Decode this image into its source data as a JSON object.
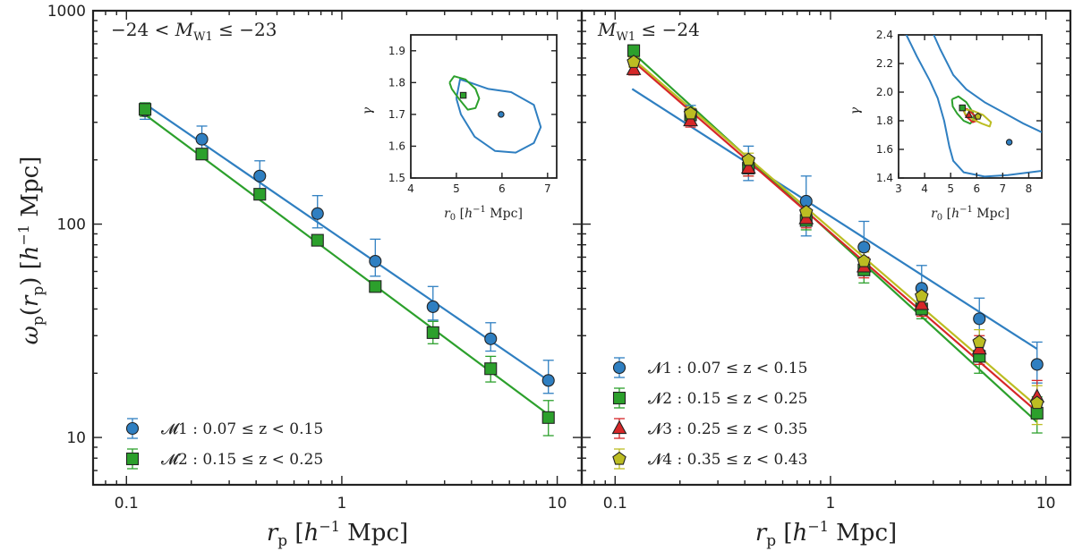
{
  "chart_data": [
    {
      "type": "scatter",
      "panel": "left",
      "title": "−24 < M_W1 ≤ −23",
      "xlabel": "r_p [h⁻¹ Mpc]",
      "ylabel": "ω_p(r_p) [h⁻¹ Mpc]",
      "xscale": "log",
      "yscale": "log",
      "xlim": [
        0.07,
        13
      ],
      "ylim": [
        6,
        1000
      ],
      "xticks": [
        0.1,
        1,
        10
      ],
      "xtick_labels": [
        "0.1",
        "1",
        "10"
      ],
      "yticks": [
        10,
        100,
        1000
      ],
      "ytick_labels": [
        "10",
        "100",
        "1000"
      ],
      "legend_position": "bottom-left",
      "series": [
        {
          "name": "M1",
          "label": "𝓜1 : 0.07 ≤ z < 0.15",
          "color": "#2f7fc1",
          "marker": "circle",
          "x": [
            0.122,
            0.224,
            0.416,
            0.771,
            1.43,
            2.65,
            4.91,
            9.1
          ],
          "y": [
            340,
            250,
            168,
            112,
            67,
            41,
            29,
            18.5
          ],
          "yerr_up": [
            30,
            38,
            30,
            24,
            18,
            10,
            5.5,
            4.5
          ],
          "yerr_down": [
            30,
            32,
            22,
            16,
            10,
            5.5,
            3.6,
            2.4
          ],
          "fit": {
            "x": [
              0.12,
              9.1
            ],
            "y": [
              370,
              18.5
            ]
          }
        },
        {
          "name": "M2",
          "label": "𝓜2 : 0.15 ≤ z < 0.25",
          "color": "#2ca02c",
          "marker": "square",
          "x": [
            0.122,
            0.224,
            0.416,
            0.771,
            1.43,
            2.65,
            4.91,
            9.1
          ],
          "y": [
            345,
            213,
            138,
            84,
            51,
            31,
            21,
            12.4
          ],
          "yerr_up": [
            25,
            8,
            6,
            4,
            3,
            4,
            3,
            2.5
          ],
          "yerr_down": [
            25,
            8,
            6,
            4,
            3,
            3.5,
            2.8,
            2.2
          ],
          "fit": {
            "x": [
              0.12,
              9.1
            ],
            "y": [
              330,
              12.8
            ]
          }
        }
      ],
      "inset": {
        "xlabel": "r₀ [h⁻¹ Mpc]",
        "ylabel": "γ",
        "xlim": [
          4,
          7.2
        ],
        "ylim": [
          1.5,
          1.95
        ],
        "xticks": [
          4,
          5,
          6,
          7
        ],
        "xtick_labels": [
          "4",
          "5",
          "6",
          "7"
        ],
        "yticks": [
          1.5,
          1.6,
          1.7,
          1.8,
          1.9
        ],
        "ytick_labels": [
          "1.5",
          "1.6",
          "1.7",
          "1.8",
          "1.9"
        ],
        "points": [
          {
            "series": "M1",
            "x": 5.98,
            "y": 1.7,
            "color": "#2f7fc1",
            "marker": "circle"
          },
          {
            "series": "M2",
            "x": 5.15,
            "y": 1.76,
            "color": "#2ca02c",
            "marker": "square"
          }
        ],
        "contours": [
          {
            "series": "M1",
            "color": "#2f7fc1",
            "x": [
              5.0,
              5.08,
              5.3,
              5.7,
              6.2,
              6.7,
              6.85,
              6.7,
              6.3,
              5.85,
              5.4,
              5.1,
              5.0
            ],
            "y": [
              1.75,
              1.81,
              1.8,
              1.78,
              1.77,
              1.73,
              1.66,
              1.61,
              1.58,
              1.585,
              1.63,
              1.7,
              1.75
            ]
          },
          {
            "series": "M2",
            "color": "#2ca02c",
            "x": [
              4.85,
              4.95,
              5.2,
              5.42,
              5.5,
              5.42,
              5.25,
              5.05,
              4.9,
              4.85
            ],
            "y": [
              1.8,
              1.82,
              1.81,
              1.78,
              1.75,
              1.72,
              1.715,
              1.75,
              1.78,
              1.8
            ]
          }
        ]
      }
    },
    {
      "type": "scatter",
      "panel": "right",
      "title": "M_W1 ≤ −24",
      "xlabel": "r_p [h⁻¹ Mpc]",
      "xscale": "log",
      "yscale": "log",
      "xlim": [
        0.07,
        13
      ],
      "ylim": [
        6,
        1000
      ],
      "xticks": [
        0.1,
        1,
        10
      ],
      "xtick_labels": [
        "0.1",
        "1",
        "10"
      ],
      "legend_position": "bottom-left",
      "series": [
        {
          "name": "N1",
          "label": "𝓝1 : 0.07 ≤ z < 0.15",
          "color": "#2f7fc1",
          "marker": "circle",
          "x": [
            0.224,
            0.416,
            0.771,
            1.43,
            2.65,
            4.91,
            9.1
          ],
          "y": [
            320,
            190,
            128,
            78,
            50,
            36,
            22
          ],
          "yerr_up": [
            40,
            42,
            40,
            25,
            14,
            9,
            6
          ],
          "yerr_down": [
            30,
            30,
            40,
            17,
            10,
            7,
            4
          ],
          "fit": {
            "x": [
              0.12,
              9.1
            ],
            "y": [
              430,
              26
            ]
          }
        },
        {
          "name": "N2",
          "label": "𝓝2 : 0.15 ≤ z < 0.25",
          "color": "#2ca02c",
          "marker": "square",
          "x": [
            0.122,
            0.224,
            0.416,
            0.771,
            1.43,
            2.65,
            4.91,
            9.1
          ],
          "y": [
            650,
            325,
            183,
            104,
            61,
            40,
            24,
            13
          ],
          "yerr_up": [
            40,
            20,
            15,
            10,
            6,
            4,
            4,
            2.5
          ],
          "yerr_down": [
            40,
            20,
            15,
            10,
            8,
            4,
            4,
            2.5
          ],
          "fit": {
            "x": [
              0.12,
              9.1
            ],
            "y": [
              640,
              11.8
            ]
          }
        },
        {
          "name": "N3",
          "label": "𝓝3 : 0.25 ≤ z < 0.35",
          "color": "#d62728",
          "marker": "triangle",
          "x": [
            0.122,
            0.224,
            0.416,
            0.771,
            1.43,
            2.65,
            4.91,
            9.1
          ],
          "y": [
            530,
            305,
            183,
            106,
            63,
            42,
            26,
            15.5
          ],
          "yerr_up": [
            30,
            20,
            15,
            10,
            7,
            5,
            4,
            3
          ],
          "yerr_down": [
            30,
            20,
            15,
            10,
            7,
            5,
            4,
            3
          ],
          "fit": {
            "x": [
              0.12,
              9.1
            ],
            "y": [
              585,
              13.2
            ]
          }
        },
        {
          "name": "N4",
          "label": "𝓝4 : 0.35 ≤ z < 0.43",
          "color": "#bcbd22",
          "marker": "pentagon",
          "x": [
            0.122,
            0.224,
            0.416,
            0.771,
            1.43,
            2.65,
            4.91,
            9.1
          ],
          "y": [
            575,
            330,
            200,
            114,
            67,
            46,
            28,
            14.5
          ],
          "yerr_up": [
            30,
            20,
            15,
            10,
            7,
            5,
            4,
            3
          ],
          "yerr_down": [
            30,
            20,
            15,
            10,
            7,
            5,
            4,
            3
          ],
          "fit": {
            "x": [
              0.12,
              9.1
            ],
            "y": [
              600,
              14
            ]
          }
        }
      ],
      "inset": {
        "xlabel": "r₀ [h⁻¹ Mpc]",
        "ylabel": "γ",
        "xlim": [
          3,
          8.5
        ],
        "ylim": [
          1.4,
          2.4
        ],
        "xticks": [
          3,
          4,
          5,
          6,
          7,
          8
        ],
        "xtick_labels": [
          "3",
          "4",
          "5",
          "6",
          "7",
          "8"
        ],
        "yticks": [
          1.4,
          1.6,
          1.8,
          2.0,
          2.2,
          2.4
        ],
        "ytick_labels": [
          "1.4",
          "1.6",
          "1.8",
          "2.0",
          "2.2",
          "2.4"
        ],
        "points": [
          {
            "series": "N1",
            "x": 7.25,
            "y": 1.65,
            "color": "#2f7fc1",
            "marker": "circle"
          },
          {
            "series": "N2",
            "x": 5.45,
            "y": 1.89,
            "color": "#2ca02c",
            "marker": "square"
          },
          {
            "series": "N3",
            "x": 5.7,
            "y": 1.84,
            "color": "#d62728",
            "marker": "triangle"
          },
          {
            "series": "N4",
            "x": 6.05,
            "y": 1.83,
            "color": "#bcbd22",
            "marker": "pentagon"
          }
        ],
        "contours": [
          {
            "series": "N1-left",
            "color": "#2f7fc1",
            "x": [
              3.3,
              3.7,
              4.2,
              4.5,
              4.75,
              4.95,
              5.1,
              5.5,
              6.3,
              7.2,
              8.5
            ],
            "y": [
              2.4,
              2.25,
              2.08,
              1.96,
              1.8,
              1.62,
              1.52,
              1.44,
              1.41,
              1.42,
              1.45
            ]
          },
          {
            "series": "N1-right",
            "color": "#2f7fc1",
            "x": [
              4.35,
              4.6,
              5.1,
              5.6,
              6.3,
              7.0,
              7.8,
              8.5
            ],
            "y": [
              2.4,
              2.3,
              2.12,
              2.02,
              1.93,
              1.86,
              1.78,
              1.72
            ]
          },
          {
            "series": "N2",
            "color": "#2ca02c",
            "x": [
              5.05,
              5.3,
              5.6,
              5.85,
              5.9,
              5.75,
              5.5,
              5.25,
              5.08,
              5.05
            ],
            "y": [
              1.95,
              1.97,
              1.93,
              1.86,
              1.81,
              1.78,
              1.8,
              1.85,
              1.9,
              1.95
            ]
          },
          {
            "series": "N3",
            "color": "#d62728",
            "x": [
              5.45,
              5.65,
              5.9,
              6.0,
              5.85,
              5.6,
              5.45
            ],
            "y": [
              1.89,
              1.88,
              1.84,
              1.8,
              1.79,
              1.83,
              1.89
            ]
          },
          {
            "series": "N4",
            "color": "#bcbd22",
            "x": [
              5.5,
              5.85,
              6.25,
              6.55,
              6.5,
              6.2,
              5.85,
              5.55,
              5.5
            ],
            "y": [
              1.88,
              1.87,
              1.84,
              1.79,
              1.76,
              1.78,
              1.81,
              1.85,
              1.88
            ]
          }
        ]
      }
    }
  ]
}
